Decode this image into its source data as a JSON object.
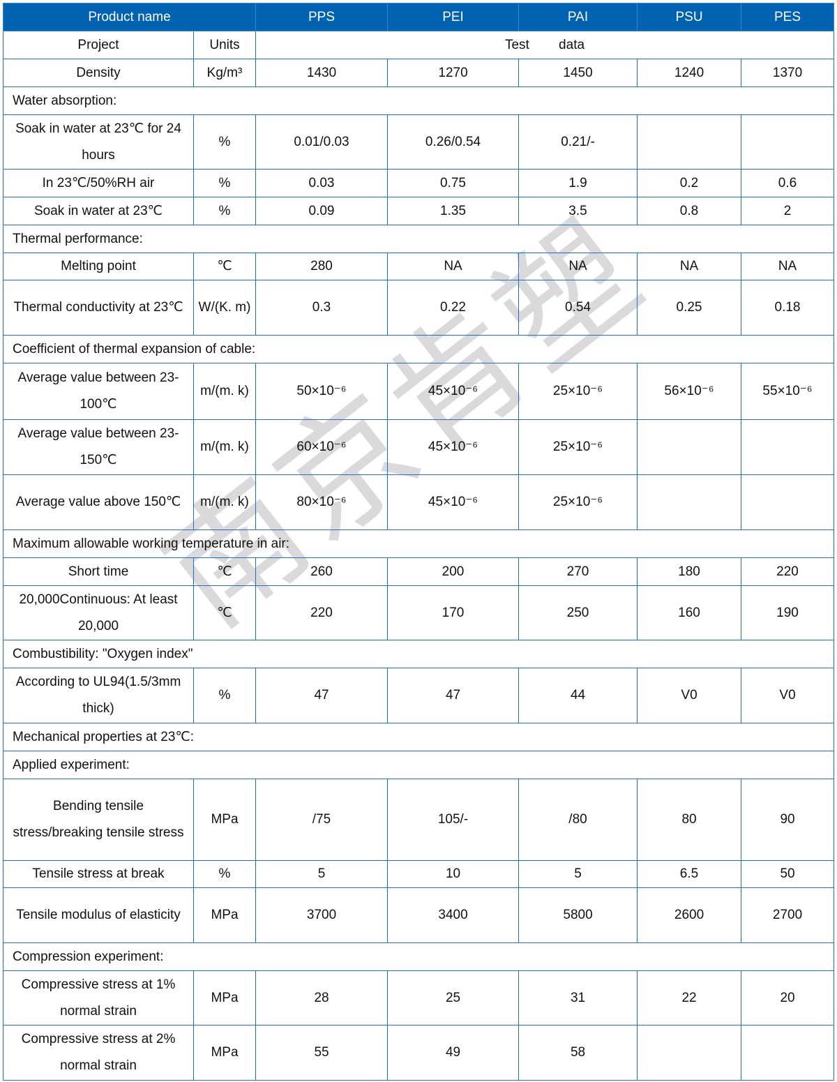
{
  "header": {
    "product_name_label": "Product name",
    "products": [
      "PPS",
      "PEI",
      "PAI",
      "PSU",
      "PES"
    ]
  },
  "subheader": {
    "project": "Project",
    "units": "Units",
    "test_data": "Test        data"
  },
  "rows": [
    {
      "type": "data",
      "label": "Density",
      "unit": "Kg/m³",
      "values": [
        "1430",
        "1270",
        "1450",
        "1240",
        "1370"
      ]
    },
    {
      "type": "section",
      "label": "Water absorption:"
    },
    {
      "type": "data",
      "label": "Soak in water at 23℃ for 24 hours",
      "unit": "%",
      "values": [
        "0.01/0.03",
        "0.26/0.54",
        "0.21/-",
        "",
        ""
      ]
    },
    {
      "type": "data",
      "label": "In 23℃/50%RH air",
      "unit": "%",
      "values": [
        "0.03",
        "0.75",
        "1.9",
        "0.2",
        "0.6"
      ]
    },
    {
      "type": "data",
      "label": "Soak in water at 23℃",
      "unit": "%",
      "values": [
        "0.09",
        "1.35",
        "3.5",
        "0.8",
        "2"
      ]
    },
    {
      "type": "section",
      "label": "Thermal performance:"
    },
    {
      "type": "data",
      "label": "Melting point",
      "unit": "℃",
      "values": [
        "280",
        "NA",
        "NA",
        "NA",
        "NA"
      ]
    },
    {
      "type": "data",
      "label": "Thermal conductivity at 23℃",
      "unit": "W/(K. m)",
      "values": [
        "0.3",
        "0.22",
        "0.54",
        "0.25",
        "0.18"
      ]
    },
    {
      "type": "section",
      "label": "Coefficient of thermal expansion of cable:"
    },
    {
      "type": "data",
      "label": "Average value between 23-100℃",
      "unit": "m/(m. k)",
      "values": [
        "50×10⁻⁶",
        "45×10⁻⁶",
        "25×10⁻⁶",
        "56×10⁻⁶",
        "55×10⁻⁶"
      ]
    },
    {
      "type": "data",
      "label": "Average value between 23-150℃",
      "unit": "m/(m. k)",
      "values": [
        "60×10⁻⁶",
        "45×10⁻⁶",
        "25×10⁻⁶",
        "",
        ""
      ]
    },
    {
      "type": "data",
      "label": "Average value above 150℃",
      "unit": "m/(m. k)",
      "values": [
        "80×10⁻⁶",
        "45×10⁻⁶",
        "25×10⁻⁶",
        "",
        ""
      ]
    },
    {
      "type": "section",
      "label": "Maximum allowable working temperature in air:"
    },
    {
      "type": "data",
      "label": "Short time",
      "unit": "℃",
      "values": [
        "260",
        "200",
        "270",
        "180",
        "220"
      ]
    },
    {
      "type": "data",
      "label": "20,000Continuous: At least 20,000",
      "unit": "℃",
      "values": [
        "220",
        "170",
        "250",
        "160",
        "190"
      ]
    },
    {
      "type": "section",
      "label": "Combustibility: \"Oxygen index\""
    },
    {
      "type": "data",
      "label": "According to UL94(1.5/3mm thick)",
      "unit": "%",
      "values": [
        "47",
        "47",
        "44",
        "V0",
        "V0"
      ]
    },
    {
      "type": "section",
      "label": "Mechanical properties at 23℃:"
    },
    {
      "type": "section",
      "label": "Applied experiment:"
    },
    {
      "type": "data",
      "label": "Bending tensile stress/breaking tensile stress",
      "unit": "MPa",
      "values": [
        "/75",
        "105/-",
        "/80",
        "80",
        "90"
      ]
    },
    {
      "type": "data",
      "label": "Tensile stress at break",
      "unit": "%",
      "values": [
        "5",
        "10",
        "5",
        "6.5",
        "50"
      ]
    },
    {
      "type": "data",
      "label": "Tensile modulus of elasticity",
      "unit": "MPa",
      "values": [
        "3700",
        "3400",
        "5800",
        "2600",
        "2700"
      ]
    },
    {
      "type": "section",
      "label": "Compression experiment:"
    },
    {
      "type": "data",
      "label": "Compressive stress at 1% normal strain",
      "unit": "MPa",
      "values": [
        "28",
        "25",
        "31",
        "22",
        "20"
      ]
    },
    {
      "type": "data",
      "label": "Compressive stress at 2% normal strain",
      "unit": "MPa",
      "values": [
        "55",
        "49",
        "58",
        "",
        ""
      ]
    }
  ],
  "watermark": "南京肯塑"
}
